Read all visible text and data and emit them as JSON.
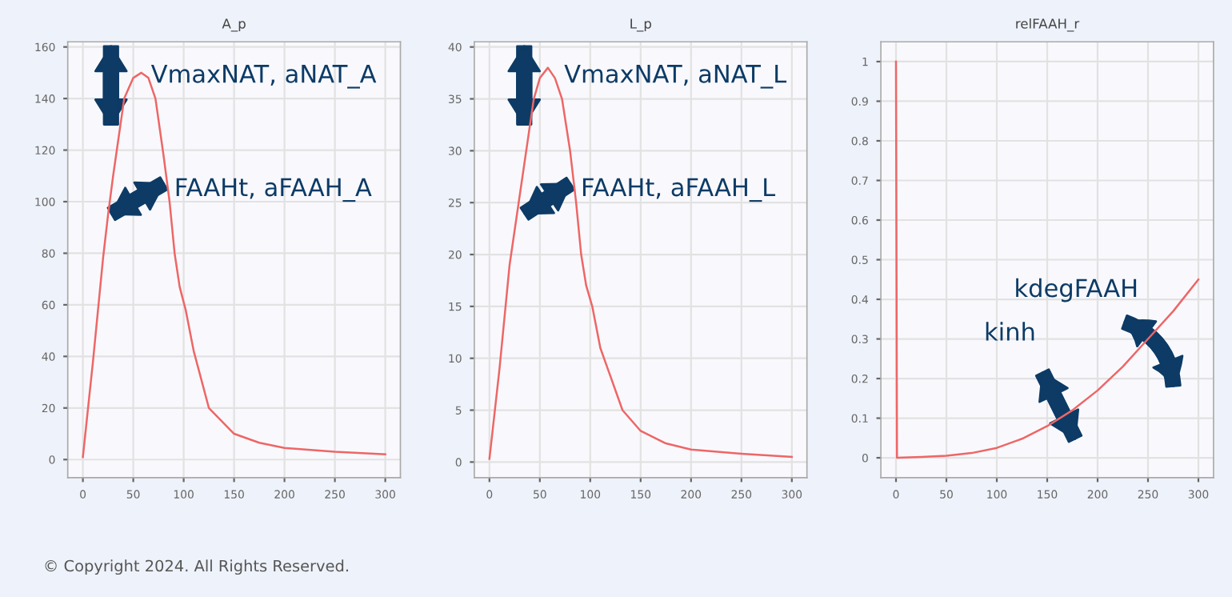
{
  "chart_data": [
    {
      "type": "line",
      "title": "A_p",
      "x": [
        0,
        10,
        20,
        25,
        30,
        41,
        50,
        58,
        65,
        72,
        80,
        86,
        91,
        96,
        102,
        110,
        125,
        150,
        175,
        200,
        250,
        300
      ],
      "series": [
        {
          "color": "#ee6666",
          "values": [
            1,
            38,
            78,
            95,
            110,
            140,
            148,
            150,
            148,
            140,
            118,
            100,
            80,
            67,
            58,
            42,
            20,
            10,
            6.5,
            4.5,
            3,
            2
          ]
        }
      ],
      "xlim": [
        -15,
        315
      ],
      "ylim": [
        -7,
        162
      ],
      "xticks": [
        0,
        50,
        100,
        150,
        200,
        250,
        300
      ],
      "yticks": [
        0,
        20,
        40,
        60,
        80,
        100,
        120,
        140,
        160
      ],
      "grid": true,
      "line_style": "solid",
      "marker": "none",
      "annotations": [
        "VmaxNAT, aNAT_A",
        "FAAHt, aFAAH_A",
        "© Copyright 2024. All Rights Reserved."
      ]
    },
    {
      "type": "line",
      "title": "L_p",
      "x": [
        0,
        10,
        20,
        29,
        35,
        44,
        50,
        58,
        65,
        72,
        80,
        86,
        91,
        96,
        102,
        110,
        132,
        150,
        175,
        200,
        250,
        300
      ],
      "series": [
        {
          "color": "#ee6666",
          "values": [
            0.3,
            9,
            19,
            25,
            29,
            35,
            37,
            38,
            37,
            35,
            30,
            25,
            20,
            17,
            15,
            11,
            5,
            3,
            1.8,
            1.2,
            0.8,
            0.5
          ]
        }
      ],
      "xlim": [
        -15,
        315
      ],
      "ylim": [
        -1.5,
        40.5
      ],
      "xticks": [
        0,
        50,
        100,
        150,
        200,
        250,
        300
      ],
      "yticks": [
        0,
        5,
        10,
        15,
        20,
        25,
        30,
        35,
        40
      ],
      "grid": true,
      "line_style": "solid",
      "marker": "none",
      "annotations": [
        "VmaxNAT, aNAT_L",
        "FAAHt, aFAAH_L"
      ]
    },
    {
      "type": "line",
      "title": "relFAAH_r",
      "x": [
        0,
        1,
        25,
        50,
        75,
        100,
        125,
        150,
        175,
        200,
        225,
        250,
        275,
        300
      ],
      "series": [
        {
          "color": "#ee6666",
          "values": [
            1,
            0,
            0.002,
            0.005,
            0.012,
            0.025,
            0.048,
            0.08,
            0.12,
            0.17,
            0.23,
            0.3,
            0.37,
            0.45
          ]
        }
      ],
      "xlim": [
        -15,
        315
      ],
      "ylim": [
        -0.05,
        1.05
      ],
      "xticks": [
        0,
        50,
        100,
        150,
        200,
        250,
        300
      ],
      "yticks": [
        0,
        0.1,
        0.2,
        0.3,
        0.4,
        0.5,
        0.6,
        0.7,
        0.8,
        0.9,
        1
      ],
      "grid": true,
      "line_style": "solid",
      "marker": "none",
      "annotations": [
        "kdegFAAH",
        "kinh"
      ]
    }
  ]
}
